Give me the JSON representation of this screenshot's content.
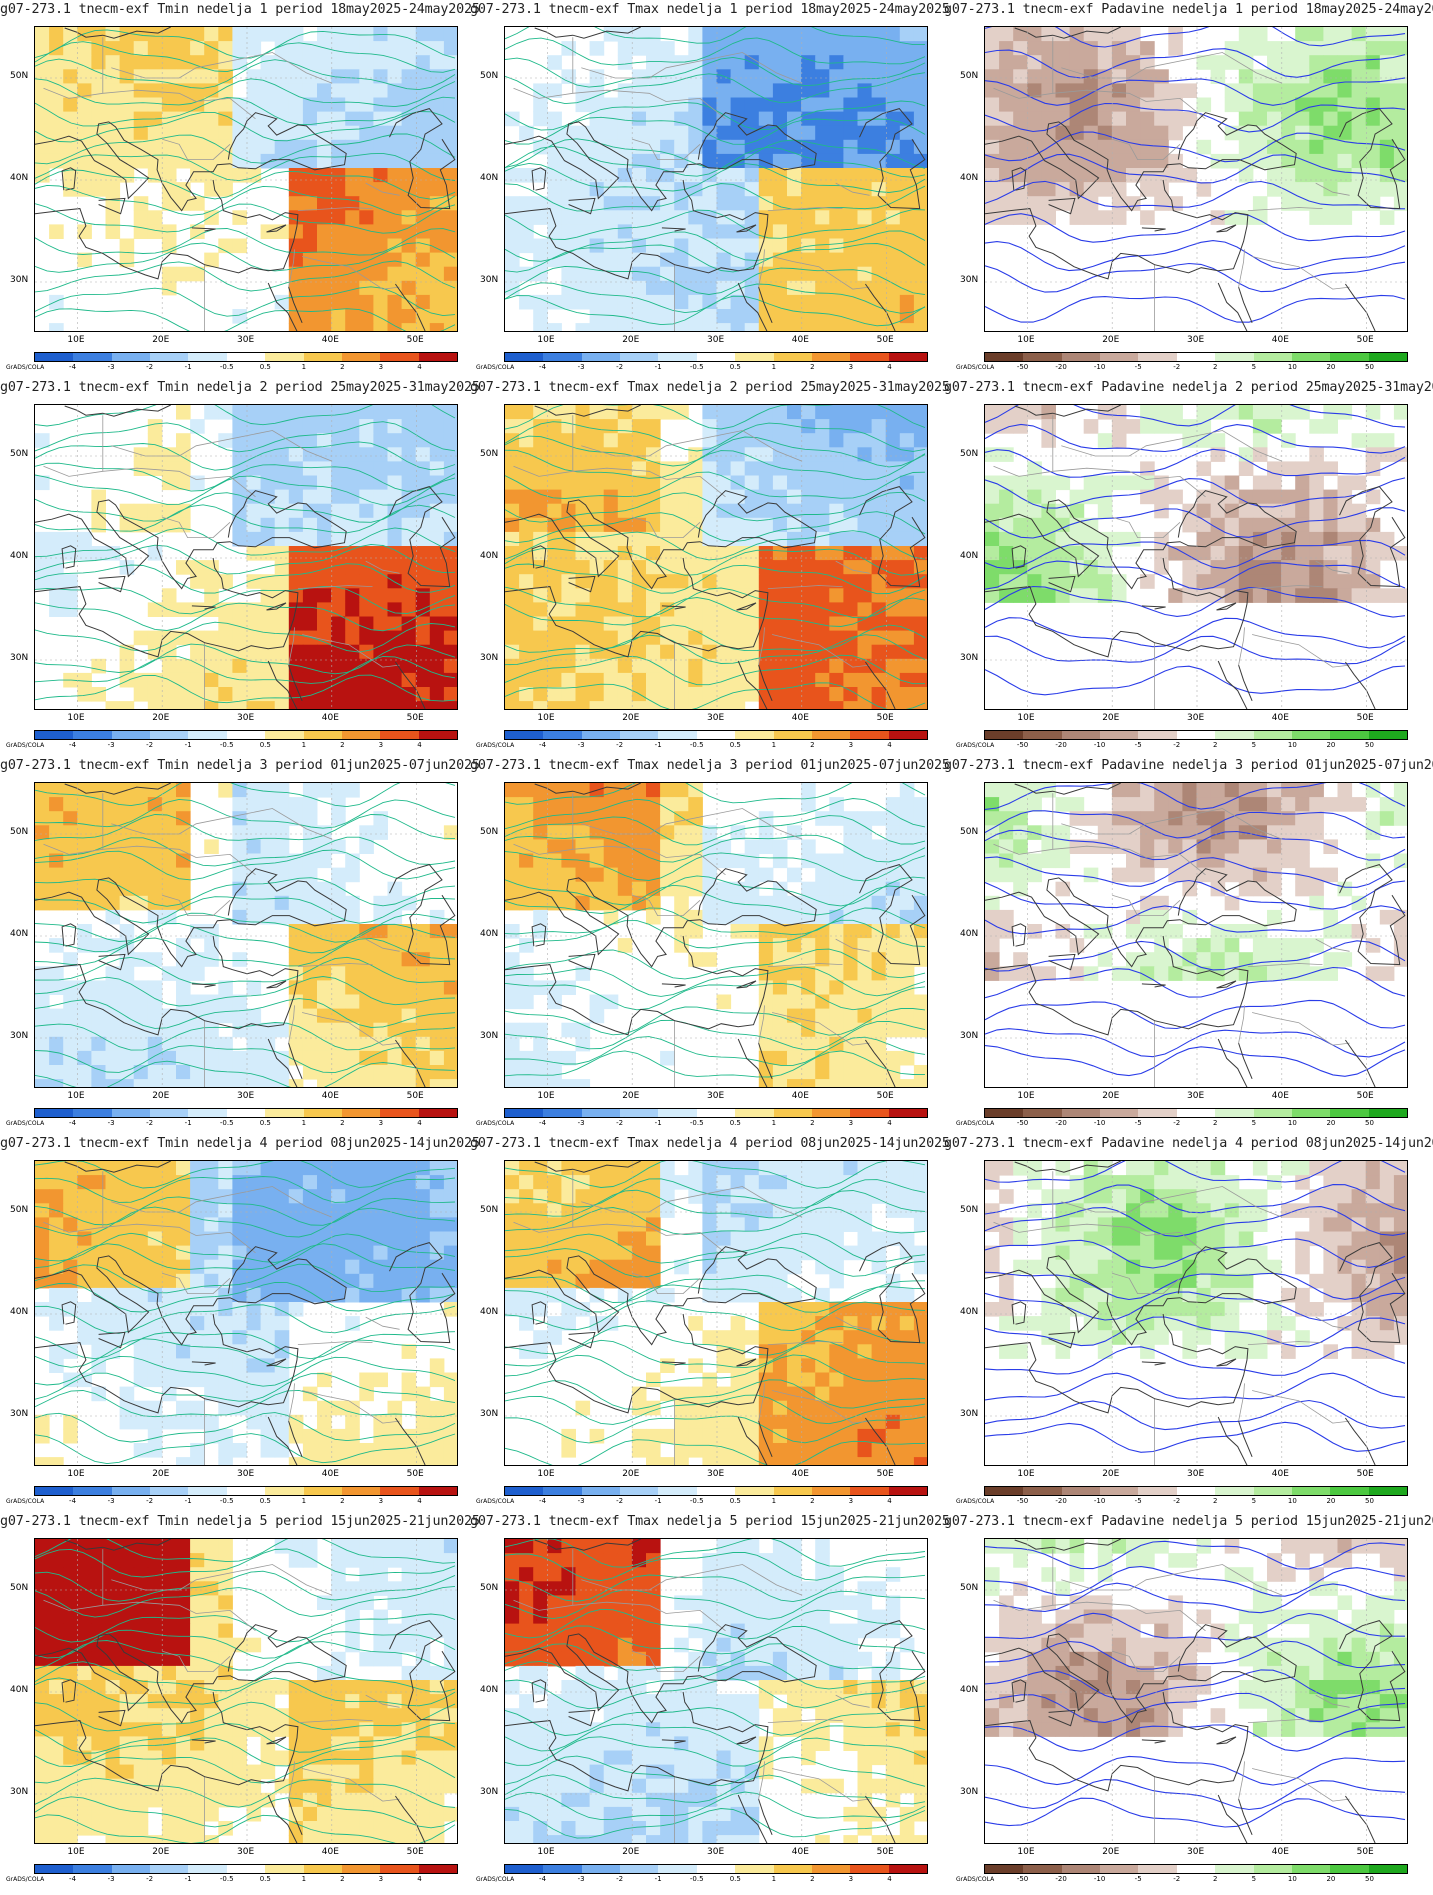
{
  "prefix": "g07-273.1 tnecm-exf",
  "label_nedelja": "nedelja",
  "label_period": "period",
  "grads_label": "GrADS/COLA",
  "lat_labels": [
    "50N",
    "40N",
    "30N"
  ],
  "lon_labels": [
    "10E",
    "20E",
    "30E",
    "40E",
    "50E"
  ],
  "variables": [
    {
      "name": "Tmin",
      "kind": "temp"
    },
    {
      "name": "Tmax",
      "kind": "temp"
    },
    {
      "name": "Padavine",
      "kind": "precip"
    }
  ],
  "weeks": [
    {
      "num": "1",
      "period": "18may2025-24may2025"
    },
    {
      "num": "2",
      "period": "25may2025-31may2025"
    },
    {
      "num": "3",
      "period": "01jun2025-07jun2025"
    },
    {
      "num": "4",
      "period": "08jun2025-14jun2025"
    },
    {
      "num": "5",
      "period": "15jun2025-21jun2025"
    }
  ],
  "temp_scale": {
    "ticks": [
      "-4",
      "-3",
      "-2",
      "-1",
      "-0.5",
      "0.5",
      "1",
      "2",
      "3",
      "4"
    ],
    "colors": [
      "#1e5fcf",
      "#3c7fe0",
      "#78b0f0",
      "#a7d0f7",
      "#d4ecfb",
      "#ffffff",
      "#fbeb9c",
      "#f7c84e",
      "#f29630",
      "#e8541c",
      "#b81210"
    ]
  },
  "precip_scale": {
    "ticks": [
      "-50",
      "-20",
      "-10",
      "-5",
      "-2",
      "2",
      "5",
      "10",
      "20",
      "50"
    ],
    "colors": [
      "#6b3e2a",
      "#8c5f4a",
      "#ad8676",
      "#c9a99c",
      "#e3d0c8",
      "#ffffff",
      "#d9f5cf",
      "#b4ec9f",
      "#7edc6a",
      "#4cc840",
      "#1ea81e"
    ]
  }
}
